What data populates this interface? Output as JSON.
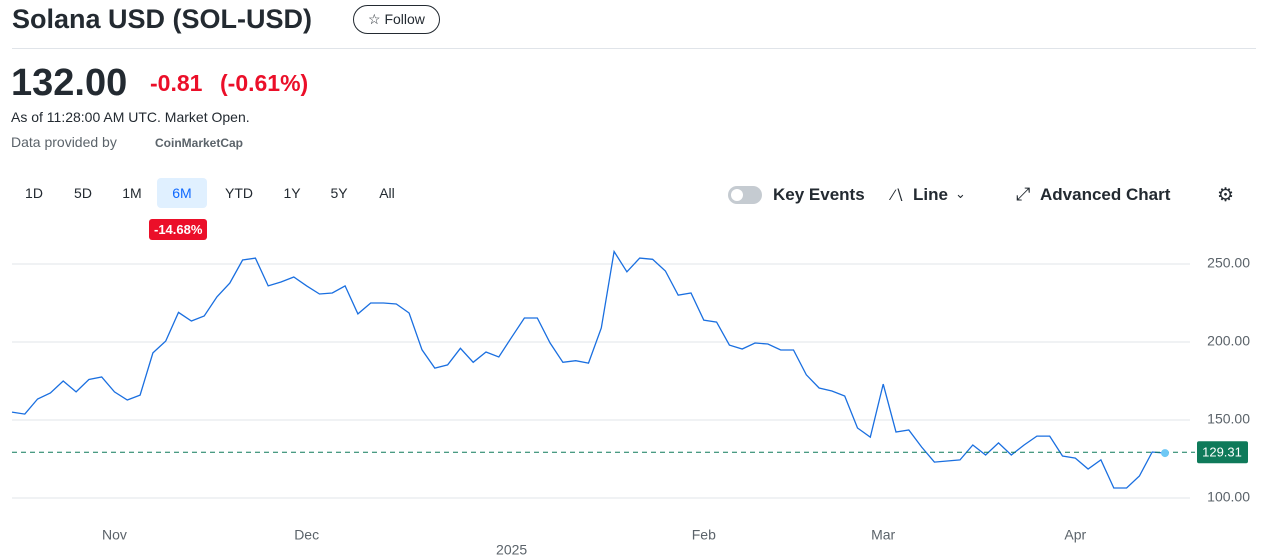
{
  "header": {
    "title": "Solana USD (SOL-USD)",
    "follow": "Follow",
    "price": "132.00",
    "change": "-0.81",
    "change_pct": "(-0.61%)",
    "as_of": "As of 11:28:00 AM UTC. Market Open.",
    "provided_by": "Data provided by",
    "provider": "CoinMarketCap"
  },
  "toolbar": {
    "ranges": [
      "1D",
      "5D",
      "1M",
      "6M",
      "YTD",
      "1Y",
      "5Y",
      "All"
    ],
    "active_range": "6M",
    "range_change": "-14.68%",
    "key_events": "Key Events",
    "line": "Line",
    "advanced_chart": "Advanced Chart"
  },
  "chart_data": {
    "type": "line",
    "categories": [
      null,
      null,
      null,
      null,
      null,
      null,
      null,
      null,
      "Nov",
      null,
      null,
      null,
      null,
      null,
      null,
      null,
      null,
      null,
      null,
      null,
      null,
      null,
      null,
      "Dec",
      null,
      null,
      null,
      null,
      null,
      null,
      null,
      null,
      null,
      null,
      null,
      null,
      null,
      null,
      null,
      "2025",
      null,
      null,
      null,
      null,
      null,
      null,
      null,
      null,
      null,
      null,
      null,
      null,
      null,
      null,
      "Feb",
      null,
      null,
      null,
      null,
      null,
      null,
      null,
      null,
      null,
      null,
      null,
      null,
      null,
      "Mar",
      null,
      null,
      null,
      null,
      null,
      null,
      null,
      null,
      null,
      null,
      null,
      null,
      null,
      null,
      "Apr",
      null,
      null,
      null,
      null,
      null,
      null,
      null
    ],
    "series": [
      {
        "name": "SOL-USD",
        "color": "#1a6fe0",
        "values": [
          155.1,
          153.8,
          163.5,
          167.3,
          175,
          168,
          176,
          177.6,
          168,
          162.8,
          166,
          193,
          200.6,
          219,
          213.5,
          216.7,
          229,
          237.8,
          252.6,
          253.8,
          236,
          238.5,
          241.7,
          236,
          230.8,
          231.4,
          236,
          218,
          225,
          225,
          224.4,
          218.6,
          195,
          183.3,
          185.3,
          196,
          187,
          193.6,
          190.4,
          203,
          215.4,
          215.4,
          199.4,
          187,
          188,
          186.5,
          209,
          258,
          245,
          253.8,
          253,
          245.5,
          230,
          231.4,
          214,
          212.8,
          198,
          195.5,
          199.4,
          198.7,
          194.9,
          194.9,
          179,
          170.5,
          168.6,
          165.4,
          144.9,
          139,
          173,
          142.3,
          143.6,
          132.7,
          123,
          123.7,
          124.4,
          134,
          127.6,
          135.3,
          127.6,
          134,
          139.7,
          139.7,
          126.9,
          125.6,
          118.6,
          124.4,
          106.4,
          106.4,
          114.1,
          129.5,
          128.8
        ]
      }
    ],
    "current_value": 129.31,
    "ylim": [
      85.9,
      265.4
    ],
    "yticks": [
      {
        "value": 100,
        "label": "100.00"
      },
      {
        "value": 150,
        "label": "150.00"
      },
      {
        "value": 200,
        "label": "200.00"
      },
      {
        "value": 250,
        "label": "250.00"
      }
    ],
    "grid": true
  }
}
